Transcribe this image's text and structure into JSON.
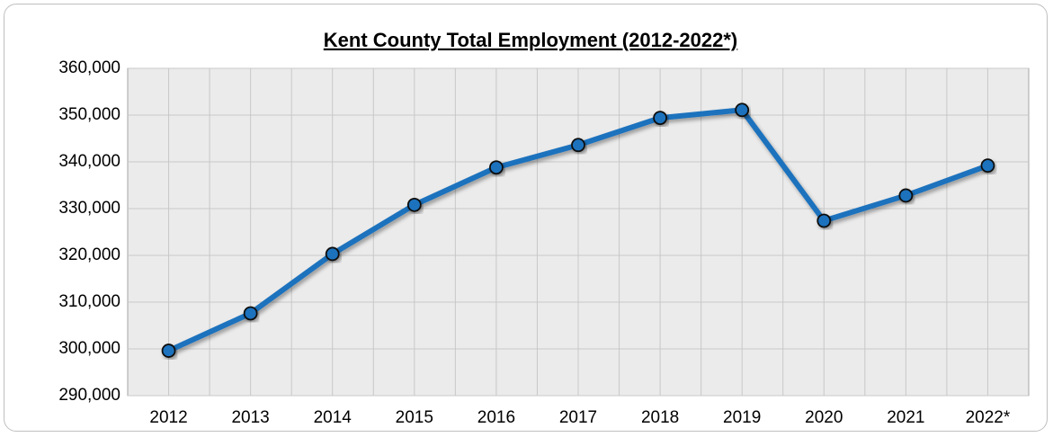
{
  "chart_data": {
    "type": "line",
    "title": "Kent County Total Employment (2012-2022*)",
    "categories": [
      "2012",
      "2013",
      "2014",
      "2015",
      "2016",
      "2017",
      "2018",
      "2019",
      "2020",
      "2021",
      "2022*"
    ],
    "values": [
      299600,
      307600,
      320300,
      330800,
      338800,
      343600,
      349400,
      351100,
      327400,
      332800,
      339200
    ],
    "color": "#1f72bd",
    "ylim": [
      290000,
      360000
    ],
    "yticks": [
      {
        "value": 290000,
        "label": "290,000"
      },
      {
        "value": 300000,
        "label": "300,000"
      },
      {
        "value": 310000,
        "label": "310,000"
      },
      {
        "value": 320000,
        "label": "320,000"
      },
      {
        "value": 330000,
        "label": "330,000"
      },
      {
        "value": 340000,
        "label": "340,000"
      },
      {
        "value": 350000,
        "label": "350,000"
      },
      {
        "value": 360000,
        "label": "360,000"
      }
    ],
    "grid": true
  }
}
